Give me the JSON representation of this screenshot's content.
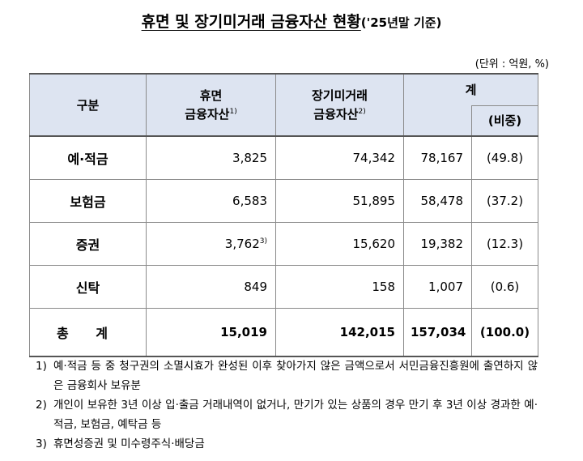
{
  "title": {
    "main": "휴면 및 장기미거래 금융자산 현황",
    "sub": "('25년말 기준)"
  },
  "unit": "(단위 : 억원, %)",
  "table": {
    "header": {
      "col1": "구분",
      "col2_line1": "휴면",
      "col2_line2": "금융자산",
      "col2_fn": "1)",
      "col3_line1": "장기미거래",
      "col3_line2": "금융자산",
      "col3_fn": "2)",
      "col4": "계",
      "col5": "(비중)"
    },
    "rows": [
      {
        "category": "예·적금",
        "dormant": "3,825",
        "dormant_fn": "",
        "long_term": "74,342",
        "total": "78,167",
        "share": "(49.8)"
      },
      {
        "category": "보험금",
        "dormant": "6,583",
        "dormant_fn": "",
        "long_term": "51,895",
        "total": "58,478",
        "share": "(37.2)"
      },
      {
        "category": "증권",
        "dormant": "3,762",
        "dormant_fn": "3)",
        "long_term": "15,620",
        "total": "19,382",
        "share": "(12.3)"
      },
      {
        "category": "신탁",
        "dormant": "849",
        "dormant_fn": "",
        "long_term": "158",
        "total": "1,007",
        "share": "(0.6)"
      }
    ],
    "total_row": {
      "category": "총 계",
      "dormant": "15,019",
      "long_term": "142,015",
      "total": "157,034",
      "share": "(100.0)"
    }
  },
  "notes": [
    {
      "num": "1)",
      "text": "예·적금 등 중 청구권의 소멸시효가 완성된 이후 찾아가지 않은 금액으로서 서민금융진흥원에 출연하지 않은 금융회사 보유분"
    },
    {
      "num": "2)",
      "text": "개인이 보유한 3년 이상 입·출금 거래내역이 없거나, 만기가 있는 상품의 경우 만기 후 3년 이상 경과한 예·적금, 보험금, 예탁금 등"
    },
    {
      "num": "3)",
      "text": "휴면성증권 및 미수령주식·배당금"
    }
  ]
}
